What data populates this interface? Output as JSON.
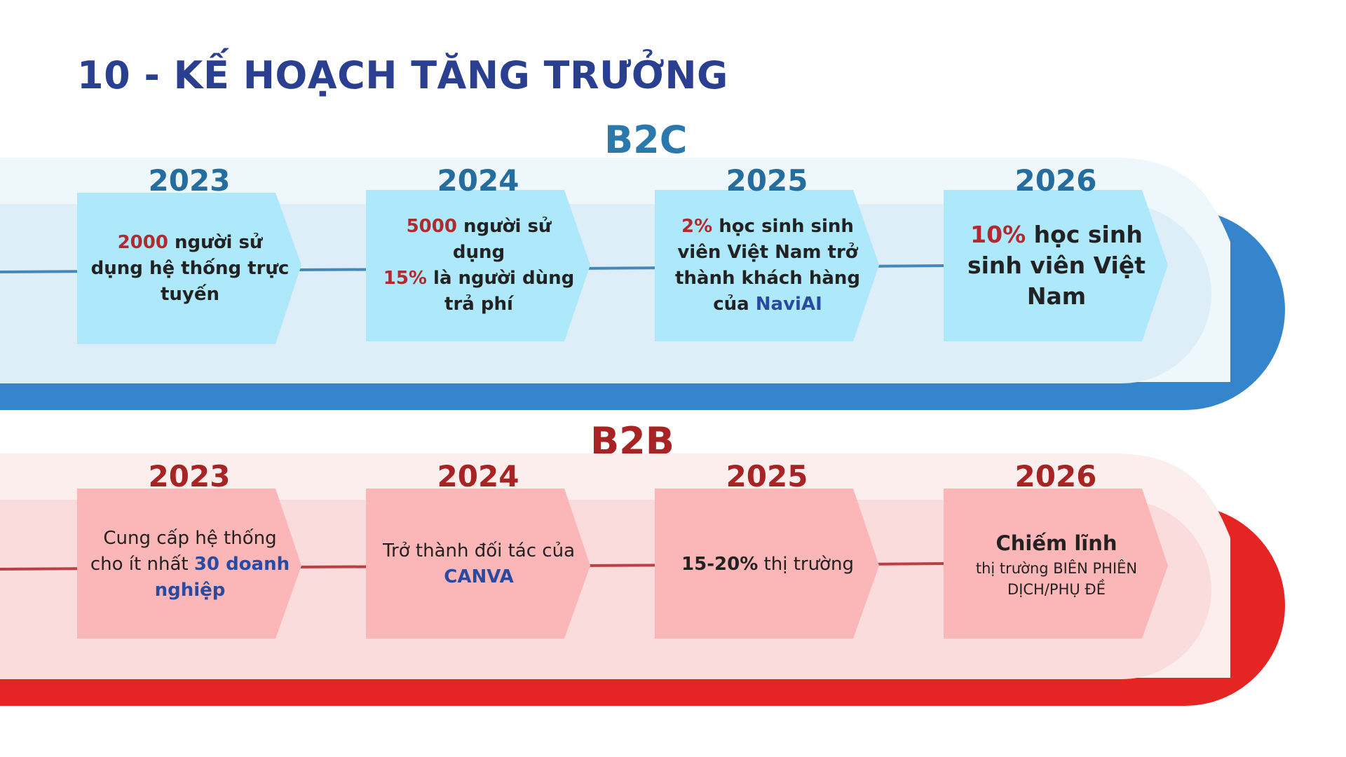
{
  "title": "10 - KẾ HOẠCH TĂNG TRƯỞNG",
  "colors": {
    "title": "#2a3f8f",
    "b2c_label": "#2b78ad",
    "b2c_year": "#256d9f",
    "b2c_band_outer": "#eef7fc",
    "b2c_band_inner": "#deeef8",
    "b2c_band_shadow": "#3585cd",
    "b2c_box": "#aee8fb",
    "b2c_line": "#4588b8",
    "b2b_label": "#a82324",
    "b2b_band_outer": "#fdeeee",
    "b2b_band_inner": "#fbdcdc",
    "b2b_band_shadow": "#e52424",
    "b2b_box": "#fbb6b7",
    "b2b_line": "#b84046",
    "highlight_red": "#b02a2f",
    "highlight_blue": "#2a4a9f"
  },
  "b2c": {
    "label": "B2C",
    "milestones": [
      {
        "year": "2023",
        "hl": "2000",
        "text": " người sử dụng hệ thống trực tuyến"
      },
      {
        "year": "2024",
        "hl": "5000",
        "text": " người sử dụng",
        "hl2": "15%",
        "text2": " là người dùng trả phí"
      },
      {
        "year": "2025",
        "hl": "2%",
        "text": " học sinh sinh viên Việt Nam trở thành khách hàng của ",
        "brand": "NaviAI"
      },
      {
        "year": "2026",
        "hl": "10%",
        "text": " học sinh sinh viên Việt Nam"
      }
    ]
  },
  "b2b": {
    "label": "B2B",
    "milestones": [
      {
        "year": "2023",
        "text": "Cung cấp hệ thống cho ít nhất ",
        "brand": "30 doanh nghiệp"
      },
      {
        "year": "2024",
        "text": "Trở thành đối tác của ",
        "brand": "CANVA"
      },
      {
        "year": "2025",
        "hl": "15-20%",
        "text": " thị trường"
      },
      {
        "year": "2026",
        "heading": "Chiếm lĩnh",
        "text": "thị trường BIÊN PHIÊN DỊCH/PHỤ ĐỀ"
      }
    ]
  }
}
